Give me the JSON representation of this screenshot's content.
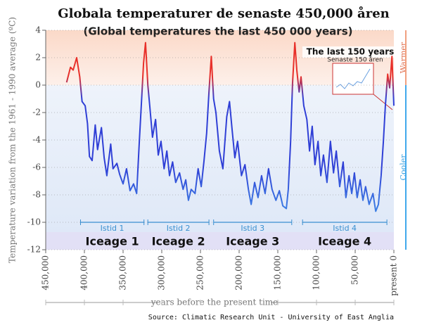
{
  "chart_data": {
    "type": "line",
    "title": "Globala temperaturer de senaste 450,000 åren",
    "subtitle": "(Global temperatures the last 450 000 years)",
    "y_label": "Temperature variation from the 1961 - 1990 average (ºC)",
    "x_label": "years before the present time",
    "source": "Source: Climatic Research Unit - University of East Anglia",
    "warm_label": "Warmer",
    "cool_label": "Cooler",
    "inset_title": "The last 150 years",
    "inset_subtitle": "Senaste 150 åren",
    "warm_color": "#e8302a",
    "cool_color": "#2f3fd6",
    "xlim": [
      450000,
      0
    ],
    "ylim": [
      -12,
      4
    ],
    "xticks": [
      {
        "value": 450000,
        "label": "450,000"
      },
      {
        "value": 400000,
        "label": "400,000"
      },
      {
        "value": 350000,
        "label": "350,000"
      },
      {
        "value": 300000,
        "label": "300,000"
      },
      {
        "value": 250000,
        "label": "250,000"
      },
      {
        "value": 200000,
        "label": "200,000"
      },
      {
        "value": 150000,
        "label": "150,000"
      },
      {
        "value": 100000,
        "label": "100,000"
      },
      {
        "value": 50000,
        "label": "50,000"
      },
      {
        "value": 0,
        "label": "present 0"
      }
    ],
    "yticks": [
      4,
      2,
      0,
      -2,
      -4,
      -6,
      -8,
      -10,
      -12
    ],
    "grid": true,
    "ice_ages": [
      {
        "label": "Istid 1",
        "label_en": "Iceage 1",
        "start": 405000,
        "end": 323000
      },
      {
        "label": "Istid 2",
        "label_en": "Iceage 2",
        "start": 318000,
        "end": 239000
      },
      {
        "label": "Istid 3",
        "label_en": "Iceage 3",
        "start": 233000,
        "end": 132000
      },
      {
        "label": "Istid 4",
        "label_en": "Iceage 4",
        "start": 118000,
        "end": 9000
      }
    ],
    "x": [
      423000,
      418000,
      414500,
      410000,
      406000,
      403000,
      399000,
      396000,
      393500,
      390000,
      386000,
      383000,
      378000,
      374500,
      371000,
      366000,
      363000,
      358000,
      354500,
      350000,
      345500,
      341000,
      336500,
      332500,
      329000,
      326000,
      323500,
      321000,
      318000,
      315500,
      312000,
      308000,
      304500,
      301000,
      297000,
      293500,
      290000,
      286000,
      282000,
      277000,
      272500,
      269000,
      265500,
      262000,
      257000,
      253000,
      249000,
      245500,
      242000,
      239000,
      236000,
      233000,
      230000,
      225500,
      221000,
      216000,
      212500,
      209000,
      205500,
      202000,
      197000,
      192500,
      188000,
      184500,
      180000,
      175500,
      171000,
      166500,
      162000,
      157500,
      152500,
      148000,
      143500,
      139000,
      136500,
      133500,
      131000,
      128000,
      125500,
      122500,
      120000,
      116500,
      112500,
      109000,
      105500,
      102000,
      98000,
      94500,
      91000,
      86500,
      82000,
      78000,
      74500,
      70000,
      65500,
      62000,
      58000,
      54500,
      51000,
      47500,
      43500,
      40000,
      36500,
      32000,
      27000,
      23500,
      20000,
      16500,
      13500,
      11000,
      8000,
      5500,
      2500,
      0
    ],
    "values": [
      0.2,
      1.3,
      1.1,
      2.0,
      0.6,
      -1.2,
      -1.5,
      -2.8,
      -5.2,
      -5.5,
      -2.9,
      -4.7,
      -3.1,
      -5.3,
      -6.6,
      -4.3,
      -6.1,
      -5.7,
      -6.5,
      -7.2,
      -6.1,
      -7.7,
      -7.2,
      -7.9,
      -4.1,
      -1.0,
      1.6,
      3.1,
      0,
      -1.5,
      -3.8,
      -2.5,
      -5.1,
      -4.1,
      -6.1,
      -4.8,
      -6.6,
      -5.6,
      -7.1,
      -6.4,
      -7.6,
      -6.9,
      -8.4,
      -7.6,
      -7.9,
      -6.1,
      -7.4,
      -5.6,
      -3.5,
      -0.5,
      2.1,
      -1.0,
      -2.0,
      -4.8,
      -6.1,
      -2.3,
      -1.2,
      -3.3,
      -5.3,
      -4.1,
      -6.6,
      -5.8,
      -7.6,
      -8.7,
      -7.1,
      -8.2,
      -6.6,
      -7.9,
      -6.1,
      -7.6,
      -8.4,
      -7.7,
      -8.8,
      -9.0,
      -7.6,
      -4.1,
      0.1,
      3.1,
      1.1,
      -0.5,
      0.6,
      -1.5,
      -2.5,
      -4.8,
      -3.0,
      -5.8,
      -4.1,
      -6.6,
      -5.1,
      -7.1,
      -4.1,
      -6.4,
      -4.8,
      -7.4,
      -5.6,
      -8.2,
      -6.6,
      -7.9,
      -6.4,
      -8.2,
      -6.9,
      -8.4,
      -7.4,
      -8.7,
      -7.9,
      -9.2,
      -8.7,
      -6.6,
      -4.1,
      -1.5,
      0.8,
      -0.2,
      2.1,
      -1.5
    ]
  }
}
